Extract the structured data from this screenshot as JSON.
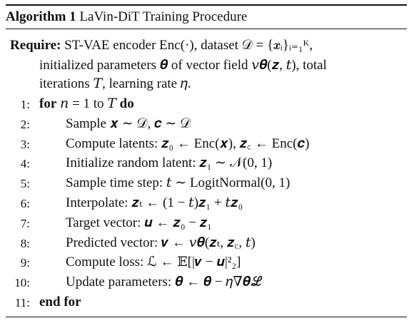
{
  "algorithm": {
    "label": "Algorithm 1",
    "title": "LaVin-DiT Training Procedure",
    "require_keyword": "Require:",
    "require_lines": [
      "ST-VAE encoder Enc(·), dataset 𝒟 = {𝒙ᵢ}ᵢ₌₁ᴷ,",
      "initialized parameters 𝜽 of vector field 𝑣𝜽(𝒛, 𝑡), total",
      "iterations 𝑇, learning rate 𝜂."
    ],
    "lines": [
      {
        "number": "1:",
        "keyword": "for",
        "text": "𝑛 = 1 to 𝑇",
        "end_keyword": "do"
      },
      {
        "number": "2:",
        "text": "Sample 𝒙 ∼ 𝒟,  𝒄 ∼ 𝒟"
      },
      {
        "number": "3:",
        "text": "Compute latents: 𝒛₀ ← Enc(𝒙),  𝒛꜀ ← Enc(𝒄)"
      },
      {
        "number": "4:",
        "text": "Initialize random latent: 𝒛₁ ∼ 𝒩(0, 1)"
      },
      {
        "number": "5:",
        "text": "Sample time step: 𝑡 ∼ LogitNormal(0, 1)"
      },
      {
        "number": "6:",
        "text": "Interpolate: 𝒛ₜ ← (1 − 𝑡)𝒛₁ + 𝑡𝒛₀"
      },
      {
        "number": "7:",
        "text": "Target vector: 𝒖 ← 𝒛₀ − 𝒛₁"
      },
      {
        "number": "8:",
        "text": "Predicted vector: 𝒗 ← 𝑣𝜽(𝒛ₜ,  𝒛꜀,  𝑡)"
      },
      {
        "number": "9:",
        "text": "Compute loss: ℒ ← 𝔼[|𝒗 − 𝒖|²₂]"
      },
      {
        "number": "10:",
        "text": "Update parameters: 𝜽 ← 𝜽 − 𝜂∇𝜽ℒ"
      },
      {
        "number": "11:",
        "keyword": "end for"
      }
    ]
  }
}
